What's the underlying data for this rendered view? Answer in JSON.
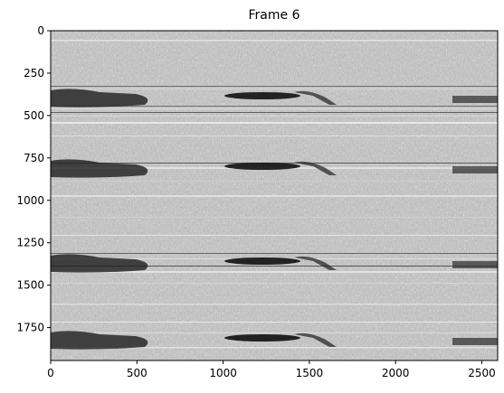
{
  "title": "Frame 6",
  "image": {
    "colormap": "gray",
    "description": "grayscale noisy image with three repeated horizontal bands of dark streaks",
    "rows": 1944,
    "cols": 2592
  },
  "axes": {
    "x": {
      "ticks": [
        0,
        500,
        1000,
        1500,
        2000,
        2500
      ],
      "labels": [
        "0",
        "500",
        "1000",
        "1500",
        "2000",
        "2500"
      ],
      "range": [
        0,
        2592
      ]
    },
    "y": {
      "ticks": [
        0,
        250,
        500,
        750,
        1000,
        1250,
        1500,
        1750
      ],
      "labels": [
        "0",
        "250",
        "500",
        "750",
        "1000",
        "1250",
        "1500",
        "1750"
      ],
      "range": [
        1944,
        0
      ],
      "inverted": true
    }
  },
  "colors": {
    "axis": "#000000",
    "background": "#ffffff"
  }
}
